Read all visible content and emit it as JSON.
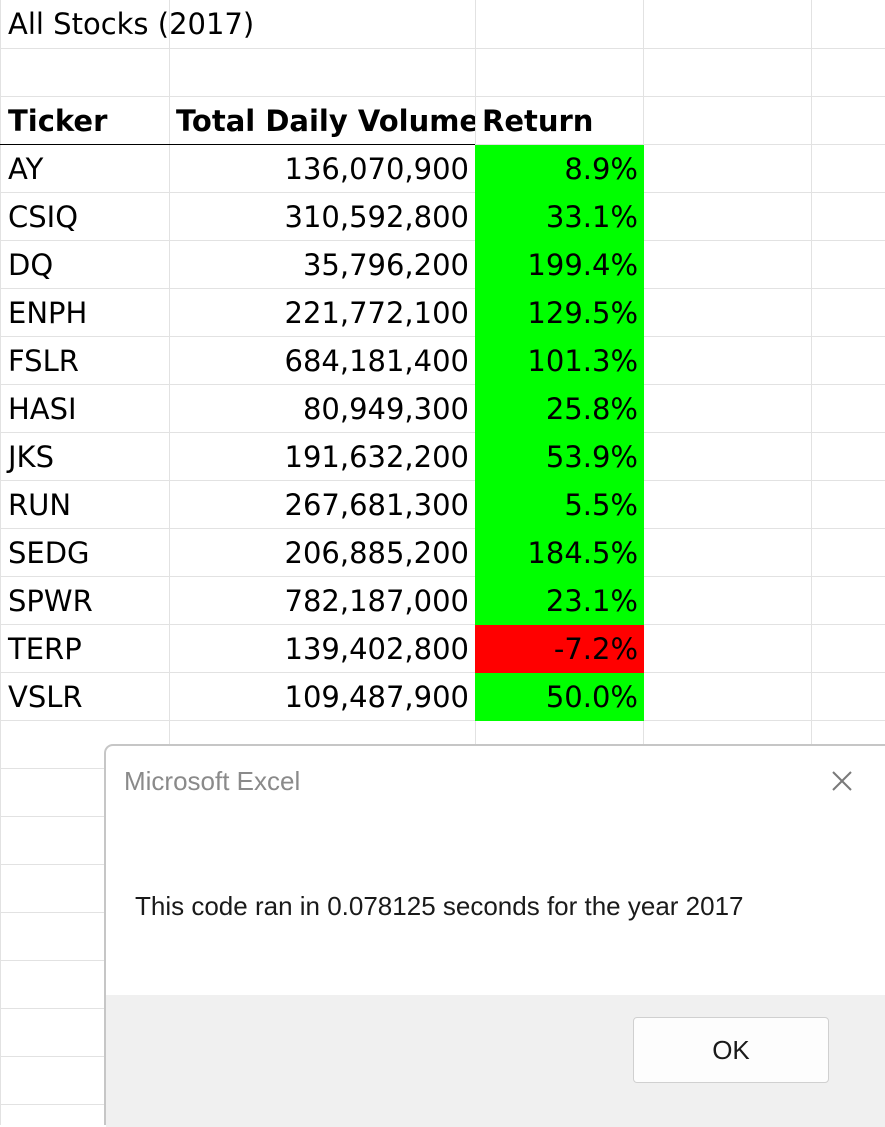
{
  "sheet": {
    "title": "All Stocks (2017)",
    "headers": {
      "ticker": "Ticker",
      "volume": "Total Daily Volume",
      "return": "Return"
    },
    "rows": [
      {
        "ticker": "AY",
        "volume": "136,070,900",
        "return": "8.9%",
        "positive": true
      },
      {
        "ticker": "CSIQ",
        "volume": "310,592,800",
        "return": "33.1%",
        "positive": true
      },
      {
        "ticker": "DQ",
        "volume": "35,796,200",
        "return": "199.4%",
        "positive": true
      },
      {
        "ticker": "ENPH",
        "volume": "221,772,100",
        "return": "129.5%",
        "positive": true
      },
      {
        "ticker": "FSLR",
        "volume": "684,181,400",
        "return": "101.3%",
        "positive": true
      },
      {
        "ticker": "HASI",
        "volume": "80,949,300",
        "return": "25.8%",
        "positive": true
      },
      {
        "ticker": "JKS",
        "volume": "191,632,200",
        "return": "53.9%",
        "positive": true
      },
      {
        "ticker": "RUN",
        "volume": "267,681,300",
        "return": "5.5%",
        "positive": true
      },
      {
        "ticker": "SEDG",
        "volume": "206,885,200",
        "return": "184.5%",
        "positive": true
      },
      {
        "ticker": "SPWR",
        "volume": "782,187,000",
        "return": "23.1%",
        "positive": true
      },
      {
        "ticker": "TERP",
        "volume": "139,402,800",
        "return": "-7.2%",
        "positive": false
      },
      {
        "ticker": "VSLR",
        "volume": "109,487,900",
        "return": "50.0%",
        "positive": true
      }
    ],
    "colors": {
      "positive": "#00ff00",
      "negative": "#ff0000"
    }
  },
  "dialog": {
    "title": "Microsoft Excel",
    "close_icon": "close-icon",
    "message": "This code ran in 0.078125 seconds for the year 2017",
    "ok_label": "OK"
  }
}
